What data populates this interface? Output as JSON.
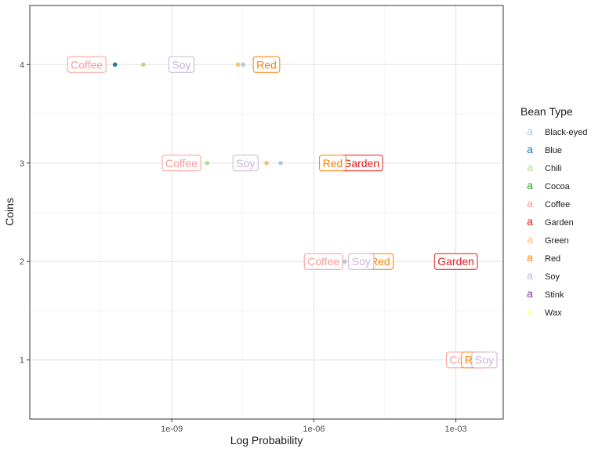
{
  "chart_data": {
    "type": "scatter",
    "title": "",
    "xlabel": "Log Probability",
    "ylabel": "Coins",
    "x_scale": "log10",
    "xlim": [
      1e-12,
      0.01
    ],
    "ylim": [
      0.4,
      4.6
    ],
    "x_ticks": [
      {
        "value": 1e-09,
        "label": "1e-09"
      },
      {
        "value": 1e-06,
        "label": "1e-06"
      },
      {
        "value": 0.001,
        "label": "1e-03"
      }
    ],
    "y_ticks": [
      {
        "value": 1,
        "label": "1"
      },
      {
        "value": 2,
        "label": "2"
      },
      {
        "value": 3,
        "label": "3"
      },
      {
        "value": 4,
        "label": "4"
      }
    ],
    "grid": true,
    "legend": {
      "title": "Bean Type",
      "position": "right",
      "key_glyph": "a"
    },
    "series": [
      {
        "name": "Black-eyed",
        "color": "#a6cee3",
        "points": [
          {
            "coins": 4,
            "x": 3.2e-08,
            "label": false
          },
          {
            "coins": 3,
            "x": 2e-07,
            "label": false
          },
          {
            "coins": 2,
            "x": 4.5e-06,
            "label": false
          }
        ]
      },
      {
        "name": "Blue",
        "color": "#1f78b4",
        "points": [
          {
            "coins": 4,
            "x": 6.3e-11,
            "label": false
          },
          {
            "coins": 3,
            "x": 2.5e-08,
            "label": false
          }
        ]
      },
      {
        "name": "Chili",
        "color": "#b2df8a",
        "points": [
          {
            "coins": 4,
            "x": 2.5e-10,
            "label": false
          },
          {
            "coins": 3,
            "x": 5.6e-09,
            "label": false
          }
        ]
      },
      {
        "name": "Cocoa",
        "color": "#33a02c",
        "points": [
          {
            "coins": 4,
            "x": 1e-07,
            "label": false
          },
          {
            "coins": 3,
            "x": 3.2e-06,
            "label": false
          }
        ]
      },
      {
        "name": "Coffee",
        "color": "#fb9a99",
        "points": [
          {
            "coins": 4,
            "x": 1.6e-11,
            "label": true
          },
          {
            "coins": 3,
            "x": 1.6e-09,
            "label": true
          },
          {
            "coins": 2,
            "x": 1.6e-06,
            "label": true
          },
          {
            "coins": 1,
            "x": 0.0016,
            "label": true
          }
        ]
      },
      {
        "name": "Garden",
        "color": "#e31a1c",
        "points": [
          {
            "coins": 3,
            "x": 1e-05,
            "label": true
          },
          {
            "coins": 2,
            "x": 0.001,
            "label": true
          }
        ]
      },
      {
        "name": "Green",
        "color": "#fdbf6f",
        "points": [
          {
            "coins": 4,
            "x": 2.5e-08,
            "label": false
          },
          {
            "coins": 3,
            "x": 1e-07,
            "label": false
          },
          {
            "coins": 2,
            "x": 2.5e-06,
            "label": false
          }
        ]
      },
      {
        "name": "Red",
        "color": "#ff7f00",
        "points": [
          {
            "coins": 4,
            "x": 1e-07,
            "label": true
          },
          {
            "coins": 3,
            "x": 2.5e-06,
            "label": true
          },
          {
            "coins": 2,
            "x": 2.5e-05,
            "label": true
          },
          {
            "coins": 1,
            "x": 0.0025,
            "label": true
          }
        ]
      },
      {
        "name": "Soy",
        "color": "#cab2d6",
        "points": [
          {
            "coins": 4,
            "x": 1.6e-09,
            "label": true
          },
          {
            "coins": 3,
            "x": 3.6e-08,
            "label": true
          },
          {
            "coins": 2,
            "x": 1e-05,
            "label": true
          },
          {
            "coins": 1,
            "x": 0.004,
            "label": true
          }
        ]
      },
      {
        "name": "Stink",
        "color": "#6a3d9a",
        "points": [
          {
            "coins": 2,
            "x": 3.2e-06,
            "label": false
          }
        ]
      },
      {
        "name": "Wax",
        "color": "#ffff99",
        "points": [
          {
            "coins": 4,
            "x": 3.2e-11,
            "label": false
          },
          {
            "coins": 3,
            "x": 4e-09,
            "label": false
          }
        ]
      }
    ]
  }
}
